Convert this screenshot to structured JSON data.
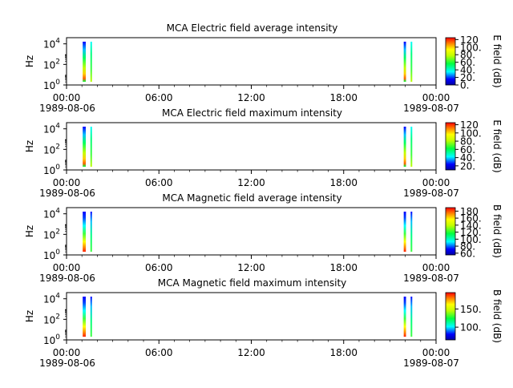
{
  "chart_data": [
    {
      "type": "heatmap",
      "title": "MCA  Electric field average intensity",
      "ylabel": "Hz",
      "colorbar_label": "E field (dB)",
      "colorbar_ticks": [
        "0.",
        "20.",
        "40.",
        "60.",
        "80.",
        "100.",
        "120"
      ],
      "colorbar_range": [
        0,
        125
      ],
      "y_ticks": [
        {
          "exp": "0"
        },
        {
          "exp": "2"
        },
        {
          "exp": "4"
        }
      ],
      "x_ticks": [
        "00:00",
        "06:00",
        "12:00",
        "18:00",
        "00:00"
      ],
      "x_start_date": "1989-08-06",
      "x_end_date": "1989-08-07",
      "data_intervals_hours": [
        [
          1.05,
          1.25
        ],
        [
          1.55,
          1.62
        ],
        [
          21.9,
          22.05
        ],
        [
          22.35,
          22.42
        ]
      ]
    },
    {
      "type": "heatmap",
      "title": "MCA  Electric field maximum intensity",
      "ylabel": "Hz",
      "colorbar_label": "E field (dB)",
      "colorbar_ticks": [
        "20.",
        "40.",
        "60.",
        "80.",
        "100.",
        "120"
      ],
      "colorbar_range": [
        10,
        125
      ],
      "y_ticks": [
        {
          "exp": "0"
        },
        {
          "exp": "2"
        },
        {
          "exp": "4"
        }
      ],
      "x_ticks": [
        "00:00",
        "06:00",
        "12:00",
        "18:00",
        "00:00"
      ],
      "x_start_date": "1989-08-06",
      "x_end_date": "1989-08-07",
      "data_intervals_hours": [
        [
          1.05,
          1.25
        ],
        [
          1.55,
          1.62
        ],
        [
          21.9,
          22.05
        ],
        [
          22.35,
          22.42
        ]
      ]
    },
    {
      "type": "heatmap",
      "title": "MCA  Magnetic field average intensity",
      "ylabel": "Hz",
      "colorbar_label": "B field (dB)",
      "colorbar_ticks": [
        "60.",
        "80.",
        "100.",
        "120.",
        "140.",
        "160.",
        "180"
      ],
      "colorbar_range": [
        55,
        190
      ],
      "y_ticks": [
        {
          "exp": "0"
        },
        {
          "exp": "2"
        },
        {
          "exp": "4"
        }
      ],
      "x_ticks": [
        "00:00",
        "06:00",
        "12:00",
        "18:00",
        "00:00"
      ],
      "x_start_date": "1989-08-06",
      "x_end_date": "1989-08-07",
      "data_intervals_hours": [
        [
          1.05,
          1.25
        ],
        [
          1.55,
          1.62
        ],
        [
          21.9,
          22.05
        ],
        [
          22.35,
          22.42
        ]
      ]
    },
    {
      "type": "heatmap",
      "title": "MCA  Magnetic field maximum intensity",
      "ylabel": "Hz",
      "colorbar_label": "B field (dB)",
      "colorbar_ticks": [
        "100.",
        "150."
      ],
      "colorbar_range": [
        65,
        195
      ],
      "y_ticks": [
        {
          "exp": "0"
        },
        {
          "exp": "2"
        },
        {
          "exp": "4"
        }
      ],
      "x_ticks": [
        "00:00",
        "06:00",
        "12:00",
        "18:00",
        "00:00"
      ],
      "x_start_date": "1989-08-06",
      "x_end_date": "1989-08-07",
      "data_intervals_hours": [
        [
          1.05,
          1.25
        ],
        [
          1.55,
          1.62
        ],
        [
          21.9,
          22.05
        ],
        [
          22.35,
          22.42
        ]
      ]
    }
  ]
}
